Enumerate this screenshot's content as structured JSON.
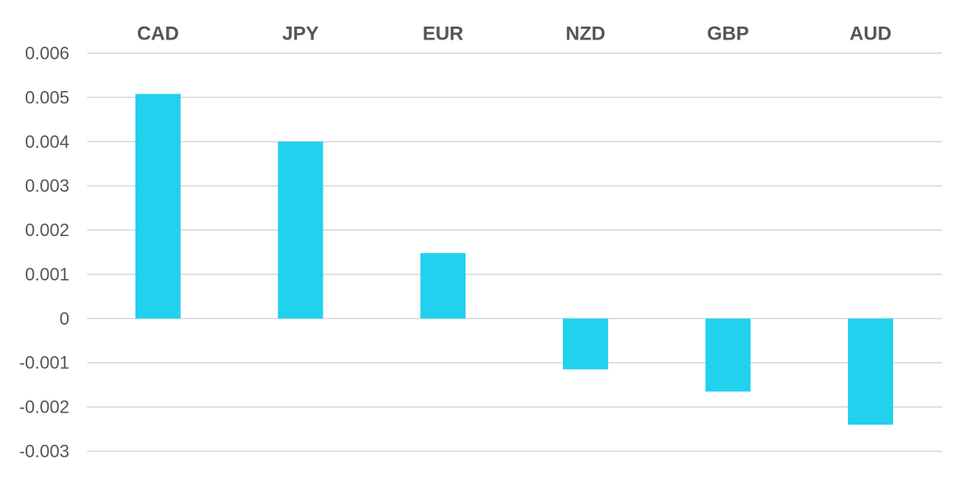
{
  "chart_data": {
    "type": "bar",
    "categories": [
      "CAD",
      "JPY",
      "EUR",
      "NZD",
      "GBP",
      "AUD"
    ],
    "values": [
      0.00508,
      0.004,
      0.00148,
      -0.00115,
      -0.00165,
      -0.0024
    ],
    "ylim": [
      -0.003,
      0.006
    ],
    "yticks": [
      "0.006",
      "0.005",
      "0.004",
      "0.003",
      "0.002",
      "0.001",
      "0",
      "-0.001",
      "-0.002",
      "-0.003"
    ],
    "category_label_position": "top",
    "grid": true,
    "legend": "none",
    "bar_color": "#22d1ee",
    "title": "",
    "xlabel": "",
    "ylabel": ""
  }
}
